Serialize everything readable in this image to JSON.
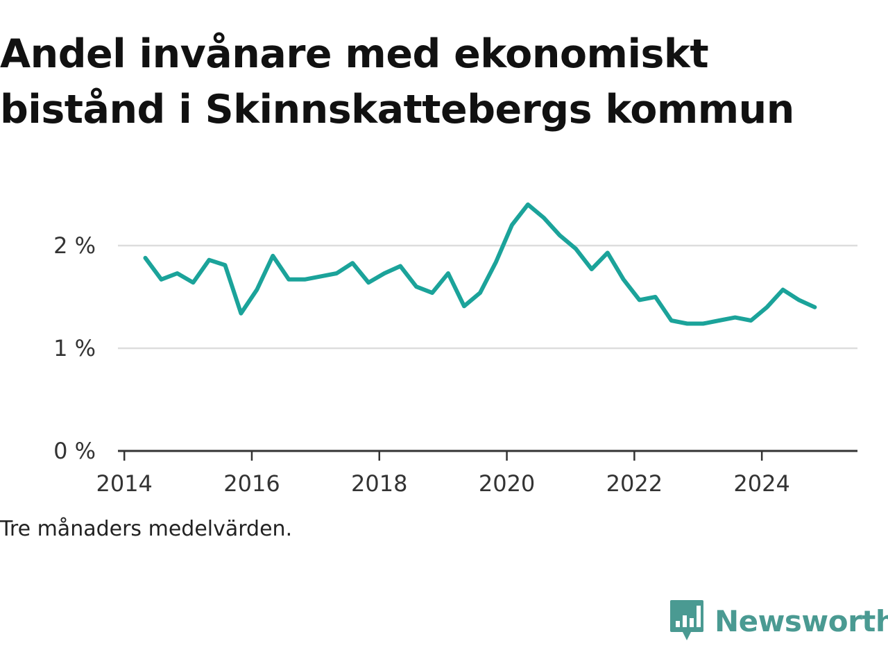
{
  "title_line1": "Andel invånare med ekonomiskt",
  "title_line2": "bistånd i Skinnskattebergs kommun",
  "note": "Tre månaders medelvärden.",
  "brand": {
    "name": "Newsworthy",
    "color": "#4a9a92"
  },
  "colors": {
    "line": "#1ba39a",
    "grid": "#dddddd",
    "axis": "#333333"
  },
  "chart_data": {
    "type": "line",
    "title": "Andel invånare med ekonomiskt bistånd i Skinnskattebergs kommun",
    "xlabel": "",
    "ylabel": "",
    "xlim": [
      2013.9,
      2025.5
    ],
    "ylim": [
      0,
      2.5
    ],
    "x_ticks": [
      2014,
      2016,
      2018,
      2020,
      2022,
      2024
    ],
    "y_ticks": [
      0,
      1,
      2
    ],
    "y_tick_labels": [
      "0 %",
      "1 %",
      "2 %"
    ],
    "grid": true,
    "series": [
      {
        "name": "",
        "x": [
          2014.33,
          2014.58,
          2014.83,
          2015.08,
          2015.33,
          2015.58,
          2015.83,
          2016.08,
          2016.33,
          2016.58,
          2016.83,
          2017.08,
          2017.33,
          2017.58,
          2017.83,
          2018.08,
          2018.33,
          2018.58,
          2018.83,
          2019.08,
          2019.33,
          2019.58,
          2019.83,
          2020.08,
          2020.33,
          2020.58,
          2020.83,
          2021.08,
          2021.33,
          2021.58,
          2021.83,
          2022.08,
          2022.33,
          2022.58,
          2022.83,
          2023.08,
          2023.33,
          2023.58,
          2023.83,
          2024.08,
          2024.33,
          2024.58,
          2024.83
        ],
        "values": [
          1.88,
          1.67,
          1.73,
          1.64,
          1.86,
          1.81,
          1.34,
          1.57,
          1.9,
          1.67,
          1.67,
          1.7,
          1.73,
          1.83,
          1.64,
          1.73,
          1.8,
          1.6,
          1.54,
          1.73,
          1.41,
          1.54,
          1.84,
          2.2,
          2.4,
          2.27,
          2.1,
          1.97,
          1.77,
          1.93,
          1.67,
          1.47,
          1.5,
          1.27,
          1.24,
          1.24,
          1.27,
          1.3,
          1.27,
          1.4,
          1.57,
          1.47,
          1.4
        ]
      }
    ]
  }
}
